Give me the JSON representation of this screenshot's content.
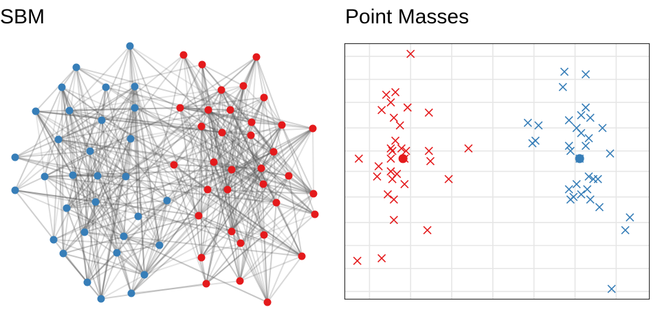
{
  "panels": {
    "left_title": "SBM",
    "right_title": "Point Masses"
  },
  "colors": {
    "red": "#e41a1c",
    "blue": "#377eb8",
    "edge": "#555555",
    "grid": "#e6e6e6"
  },
  "chart_data": [
    {
      "type": "network",
      "title": "SBM",
      "communities": [
        "red",
        "blue"
      ],
      "nodes_red": [
        [
          267,
          80
        ],
        [
          294,
          94
        ],
        [
          373,
          83
        ],
        [
          322,
          131
        ],
        [
          354,
          125
        ],
        [
          384,
          142
        ],
        [
          262,
          157
        ],
        [
          303,
          160
        ],
        [
          335,
          160
        ],
        [
          366,
          178
        ],
        [
          293,
          184
        ],
        [
          410,
          182
        ],
        [
          455,
          187
        ],
        [
          323,
          193
        ],
        [
          398,
          221
        ],
        [
          365,
          197
        ],
        [
          253,
          240
        ],
        [
          311,
          236
        ],
        [
          337,
          247
        ],
        [
          380,
          245
        ],
        [
          420,
          256
        ],
        [
          383,
          268
        ],
        [
          331,
          276
        ],
        [
          302,
          276
        ],
        [
          456,
          282
        ],
        [
          402,
          295
        ],
        [
          458,
          312
        ],
        [
          289,
          314
        ],
        [
          337,
          337
        ],
        [
          384,
          342
        ],
        [
          350,
          354
        ],
        [
          293,
          375
        ],
        [
          439,
          373
        ],
        [
          300,
          413
        ],
        [
          349,
          409
        ],
        [
          389,
          440
        ]
      ],
      "nodes_blue": [
        [
          189,
          67
        ],
        [
          111,
          98
        ],
        [
          90,
          127
        ],
        [
          154,
          127
        ],
        [
          196,
          126
        ],
        [
          52,
          162
        ],
        [
          101,
          161
        ],
        [
          196,
          157
        ],
        [
          148,
          175
        ],
        [
          85,
          203
        ],
        [
          190,
          202
        ],
        [
          22,
          229
        ],
        [
          131,
          220
        ],
        [
          106,
          255
        ],
        [
          142,
          256
        ],
        [
          183,
          257
        ],
        [
          65,
          257
        ],
        [
          22,
          277
        ],
        [
          243,
          292
        ],
        [
          139,
          294
        ],
        [
          97,
          303
        ],
        [
          201,
          315
        ],
        [
          123,
          338
        ],
        [
          180,
          344
        ],
        [
          78,
          349
        ],
        [
          232,
          357
        ],
        [
          170,
          368
        ],
        [
          92,
          369
        ],
        [
          210,
          400
        ],
        [
          127,
          411
        ],
        [
          191,
          427
        ],
        [
          147,
          435
        ]
      ]
    },
    {
      "type": "scatter",
      "title": "Point Masses",
      "xlim": [
        0,
        10
      ],
      "ylim": [
        0,
        10
      ],
      "xticks": [
        0.8,
        2.15,
        3.5,
        4.85,
        6.2,
        7.55,
        8.9
      ],
      "yticks": [
        0.3,
        1.2,
        2.1,
        3.0,
        4.0,
        5.0,
        5.8,
        6.7,
        7.7,
        8.6,
        9.5
      ],
      "grid": true,
      "series": [
        {
          "color": "red",
          "marker": "x",
          "center": [
            1.9,
            5.5
          ],
          "points": [
            [
              2.15,
              9.6
            ],
            [
              1.35,
              8.0
            ],
            [
              1.65,
              8.1
            ],
            [
              1.5,
              7.7
            ],
            [
              1.2,
              7.4
            ],
            [
              2.05,
              7.5
            ],
            [
              1.6,
              7.1
            ],
            [
              2.75,
              7.3
            ],
            [
              1.8,
              6.8
            ],
            [
              1.65,
              6.2
            ],
            [
              1.5,
              5.9
            ],
            [
              1.85,
              5.9
            ],
            [
              1.55,
              5.8
            ],
            [
              2.0,
              5.8
            ],
            [
              2.75,
              5.8
            ],
            [
              4.05,
              5.9
            ],
            [
              1.5,
              5.5
            ],
            [
              2.8,
              5.4
            ],
            [
              0.45,
              5.5
            ],
            [
              1.95,
              5.5
            ],
            [
              1.1,
              5.2
            ],
            [
              1.5,
              5.0
            ],
            [
              1.7,
              4.9
            ],
            [
              1.05,
              4.8
            ],
            [
              1.55,
              4.7
            ],
            [
              3.4,
              4.7
            ],
            [
              1.95,
              4.5
            ],
            [
              1.4,
              4.1
            ],
            [
              1.6,
              3.9
            ],
            [
              1.6,
              3.1
            ],
            [
              2.7,
              2.7
            ],
            [
              0.4,
              1.5
            ],
            [
              1.2,
              1.6
            ]
          ]
        },
        {
          "color": "blue",
          "marker": "x",
          "center": [
            7.7,
            5.5
          ],
          "points": [
            [
              7.2,
              8.9
            ],
            [
              7.9,
              8.8
            ],
            [
              7.15,
              8.3
            ],
            [
              7.9,
              7.5
            ],
            [
              7.75,
              7.2
            ],
            [
              8.05,
              7.1
            ],
            [
              6.0,
              6.9
            ],
            [
              7.35,
              7.0
            ],
            [
              6.35,
              6.8
            ],
            [
              7.6,
              6.7
            ],
            [
              8.45,
              6.7
            ],
            [
              7.75,
              6.5
            ],
            [
              8.0,
              6.3
            ],
            [
              6.15,
              6.1
            ],
            [
              6.25,
              6.2
            ],
            [
              7.35,
              6.0
            ],
            [
              7.9,
              6.0
            ],
            [
              7.4,
              5.8
            ],
            [
              8.7,
              5.7
            ],
            [
              7.7,
              5.5
            ],
            [
              8.0,
              4.8
            ],
            [
              8.15,
              4.7
            ],
            [
              8.3,
              4.7
            ],
            [
              7.6,
              4.5
            ],
            [
              7.35,
              4.3
            ],
            [
              7.95,
              4.3
            ],
            [
              7.75,
              4.1
            ],
            [
              7.5,
              4.0
            ],
            [
              7.4,
              3.9
            ],
            [
              8.05,
              3.9
            ],
            [
              8.35,
              3.6
            ],
            [
              9.35,
              3.2
            ],
            [
              9.2,
              2.7
            ],
            [
              8.75,
              0.4
            ]
          ]
        }
      ]
    }
  ]
}
